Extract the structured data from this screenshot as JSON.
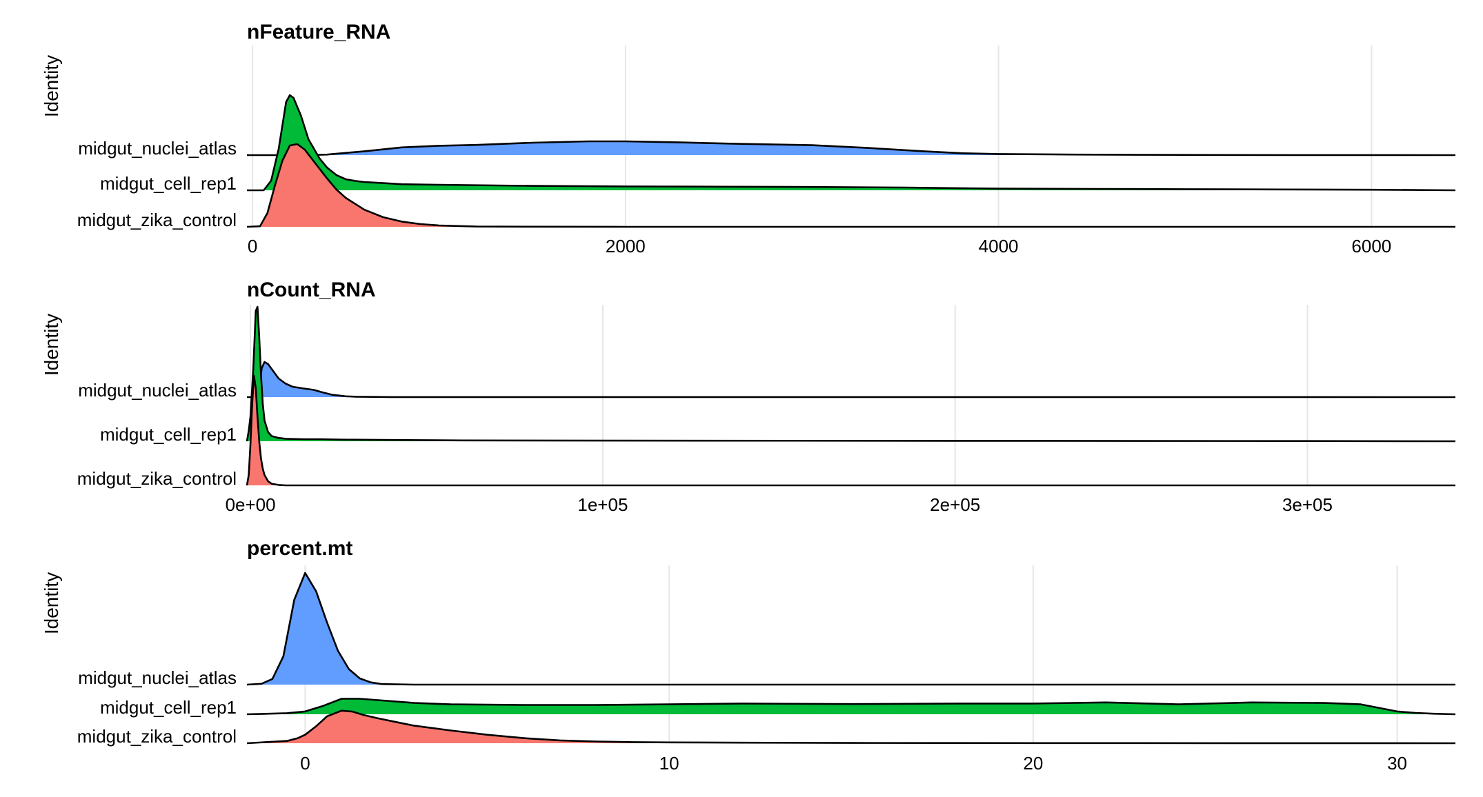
{
  "chart_data": [
    {
      "type": "ridgeline",
      "title": "nFeature_RNA",
      "ylabel": "Identity",
      "xlim": [
        -30,
        6450
      ],
      "xticks": [
        0,
        2000,
        4000,
        6000
      ],
      "xtick_labels": [
        "0",
        "2000",
        "4000",
        "6000"
      ],
      "categories": [
        "midgut_nuclei_atlas",
        "midgut_cell_rep1",
        "midgut_zika_control"
      ],
      "series": [
        {
          "name": "midgut_nuclei_atlas",
          "color": "#619CFF",
          "x": [
            -30,
            300,
            400,
            600,
            800,
            1000,
            1200,
            1500,
            1800,
            2000,
            2300,
            2600,
            3000,
            3300,
            3600,
            3800,
            4000,
            4400,
            4800,
            5200,
            5600,
            6000,
            6450
          ],
          "density": [
            0,
            0,
            0.02,
            0.14,
            0.28,
            0.34,
            0.37,
            0.45,
            0.5,
            0.5,
            0.46,
            0.41,
            0.36,
            0.26,
            0.14,
            0.07,
            0.04,
            0.02,
            0.01,
            0.005,
            0.002,
            0.002,
            0
          ]
        },
        {
          "name": "midgut_cell_rep1",
          "color": "#00BA38",
          "x": [
            -30,
            60,
            100,
            140,
            180,
            200,
            220,
            260,
            300,
            360,
            400,
            450,
            500,
            550,
            600,
            700,
            800,
            1000,
            1500,
            2000,
            2500,
            3000,
            3500,
            4000,
            4500,
            5000,
            5500,
            6000,
            6450
          ],
          "density": [
            0,
            0,
            0.35,
            1.5,
            3.2,
            3.45,
            3.35,
            2.7,
            1.85,
            1.15,
            0.82,
            0.55,
            0.4,
            0.34,
            0.3,
            0.26,
            0.22,
            0.2,
            0.16,
            0.14,
            0.13,
            0.12,
            0.1,
            0.06,
            0.05,
            0.04,
            0.03,
            0.02,
            0
          ]
        },
        {
          "name": "midgut_zika_control",
          "color": "#F8766D",
          "x": [
            -30,
            40,
            80,
            120,
            160,
            200,
            240,
            280,
            320,
            360,
            400,
            450,
            500,
            600,
            700,
            800,
            900,
            1000,
            1100,
            1200,
            1500,
            2000,
            6450
          ],
          "density": [
            0,
            0.02,
            0.5,
            1.5,
            2.4,
            2.95,
            3.0,
            2.8,
            2.45,
            2.1,
            1.75,
            1.35,
            1.05,
            0.62,
            0.35,
            0.19,
            0.1,
            0.05,
            0.03,
            0.01,
            0.005,
            0,
            0
          ]
        }
      ]
    },
    {
      "type": "ridgeline",
      "title": "nCount_RNA",
      "ylabel": "Identity",
      "xlim": [
        -1000,
        342000
      ],
      "xticks": [
        0,
        100000,
        200000,
        300000
      ],
      "xtick_labels": [
        "0e+00",
        "1e+05",
        "2e+05",
        "3e+05"
      ],
      "categories": [
        "midgut_nuclei_atlas",
        "midgut_cell_rep1",
        "midgut_zika_control"
      ],
      "series": [
        {
          "name": "midgut_nuclei_atlas",
          "color": "#619CFF",
          "x": [
            -1000,
            2000,
            2500,
            3200,
            4000,
            5000,
            6500,
            8000,
            10000,
            12000,
            15000,
            18000,
            20000,
            23000,
            27000,
            30000,
            35000,
            40000,
            60000,
            342000
          ],
          "density": [
            0,
            0,
            0.5,
            1.4,
            1.7,
            1.6,
            1.25,
            0.9,
            0.65,
            0.5,
            0.42,
            0.35,
            0.25,
            0.12,
            0.04,
            0.02,
            0.01,
            0.005,
            0.002,
            0
          ]
        },
        {
          "name": "midgut_cell_rep1",
          "color": "#00BA38",
          "x": [
            -1000,
            -500,
            0,
            800,
            1500,
            2000,
            2500,
            3000,
            3500,
            4000,
            5000,
            6000,
            8000,
            10000,
            15000,
            20000,
            25000,
            40000,
            60000,
            100000,
            200000,
            300000,
            342000
          ],
          "density": [
            0,
            0.5,
            1.2,
            3.5,
            6.3,
            6.5,
            5.0,
            3.2,
            1.8,
            1.0,
            0.45,
            0.25,
            0.16,
            0.12,
            0.1,
            0.1,
            0.08,
            0.06,
            0.04,
            0.03,
            0.02,
            0.01,
            0
          ]
        },
        {
          "name": "midgut_zika_control",
          "color": "#F8766D",
          "x": [
            -1000,
            -500,
            0,
            500,
            1000,
            1500,
            2000,
            2500,
            3000,
            3500,
            4000,
            5000,
            6000,
            8000,
            10000,
            342000
          ],
          "density": [
            0,
            0.5,
            2.0,
            4.0,
            5.3,
            4.7,
            3.3,
            2.1,
            1.3,
            0.8,
            0.5,
            0.2,
            0.08,
            0.02,
            0,
            0
          ]
        }
      ]
    },
    {
      "type": "ridgeline",
      "title": "percent.mt",
      "ylabel": "Identity",
      "xlim": [
        -1.6,
        31.6
      ],
      "xticks": [
        0,
        10,
        20,
        30
      ],
      "xtick_labels": [
        "0",
        "10",
        "20",
        "30"
      ],
      "categories": [
        "midgut_nuclei_atlas",
        "midgut_cell_rep1",
        "midgut_zika_control"
      ],
      "series": [
        {
          "name": "midgut_nuclei_atlas",
          "color": "#619CFF",
          "x": [
            -1.6,
            -1.2,
            -0.9,
            -0.6,
            -0.3,
            0.0,
            0.3,
            0.6,
            0.9,
            1.2,
            1.5,
            1.8,
            2.1,
            2.5,
            3.0,
            5.0,
            31.6
          ],
          "density": [
            0,
            0.03,
            0.2,
            1.0,
            3.0,
            3.95,
            3.3,
            2.2,
            1.2,
            0.55,
            0.22,
            0.08,
            0.02,
            0.01,
            0,
            0,
            0
          ]
        },
        {
          "name": "midgut_cell_rep1",
          "color": "#00BA38",
          "x": [
            -1.6,
            -1.0,
            -0.5,
            0,
            0.5,
            1.0,
            1.5,
            2.0,
            3.0,
            4.0,
            6.0,
            8.0,
            10.0,
            12.0,
            15.0,
            18.0,
            20.0,
            22.0,
            24.0,
            26.0,
            28.0,
            29.0,
            30.0,
            30.5,
            31.0,
            31.6
          ],
          "density": [
            0,
            0.02,
            0.04,
            0.1,
            0.3,
            0.55,
            0.55,
            0.5,
            0.4,
            0.35,
            0.33,
            0.33,
            0.35,
            0.38,
            0.36,
            0.38,
            0.38,
            0.42,
            0.35,
            0.42,
            0.4,
            0.35,
            0.1,
            0.05,
            0.02,
            0
          ]
        },
        {
          "name": "midgut_zika_control",
          "color": "#F8766D",
          "x": [
            -1.6,
            -0.5,
            -0.2,
            0,
            0.3,
            0.6,
            1.0,
            1.3,
            1.6,
            2.0,
            2.5,
            3.0,
            4.0,
            5.0,
            6.0,
            7.0,
            8.0,
            9.0,
            10.0,
            12.0,
            15.0,
            20.0,
            31.6
          ],
          "density": [
            0,
            0.08,
            0.18,
            0.3,
            0.6,
            0.95,
            1.15,
            1.12,
            1.0,
            0.88,
            0.75,
            0.62,
            0.45,
            0.3,
            0.18,
            0.1,
            0.06,
            0.04,
            0.03,
            0.02,
            0.01,
            0.005,
            0
          ]
        }
      ]
    }
  ]
}
